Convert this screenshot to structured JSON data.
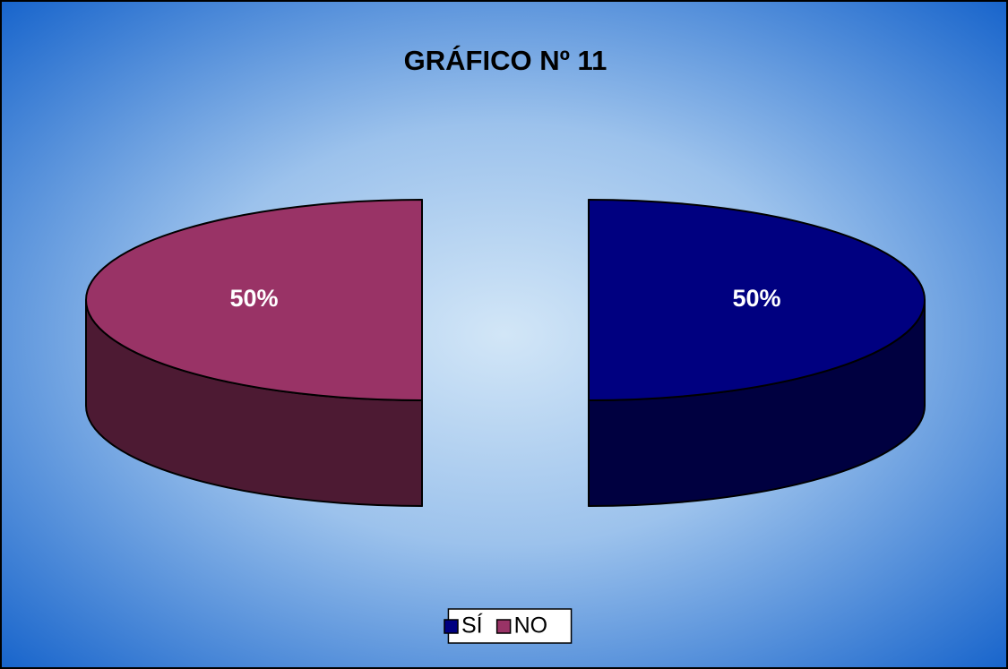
{
  "chart_data": {
    "type": "pie",
    "title": "GRÁFICO Nº 11",
    "categories": [
      "SÍ",
      "NO"
    ],
    "values": [
      50,
      50
    ],
    "value_labels": [
      "50%",
      "50%"
    ],
    "colors": [
      "#000080",
      "#993366"
    ],
    "legend": "bottom",
    "exploded": true,
    "three_d": true
  }
}
